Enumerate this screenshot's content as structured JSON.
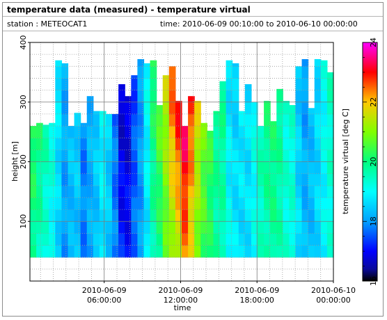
{
  "header": {
    "title": "temperature data (measured) - temperature virtual",
    "station_label": "station : METEOCAT1",
    "time_label": "time: 2010-06-09 00:10:00 to 2010-06-10 00:00:00"
  },
  "chart_data": {
    "type": "heatmap",
    "xlabel": "time",
    "ylabel": "height [m]",
    "colorbar_label": "temperature virtual [deg C]",
    "xlim": [
      "2010-06-09 00:10:00",
      "2010-06-10 00:00:00"
    ],
    "ylim": [
      0,
      400
    ],
    "y_ticks": [
      100,
      200,
      300,
      400
    ],
    "x_ticks": [
      {
        "value": "2010-06-09 06:00:00",
        "line1": "2010-06-09",
        "line2": "06:00:00"
      },
      {
        "value": "2010-06-09 12:00:00",
        "line1": "2010-06-09",
        "line2": "12:00:00"
      },
      {
        "value": "2010-06-09 18:00:00",
        "line1": "2010-06-09",
        "line2": "18:00:00"
      },
      {
        "value": "2010-06-10 00:00:00",
        "line1": "2010-06-10",
        "line2": "00:00:00"
      }
    ],
    "color_range": [
      16,
      24
    ],
    "colorbar_ticks": [
      16,
      18,
      20,
      22,
      24
    ],
    "grid": true,
    "data_bottom_m": 40,
    "hours": [
      0.25,
      0.75,
      1.25,
      1.75,
      2.25,
      2.75,
      3.25,
      3.75,
      4.25,
      4.75,
      5.25,
      5.75,
      6.25,
      6.75,
      7.25,
      7.75,
      8.25,
      8.75,
      9.25,
      9.75,
      10.25,
      10.75,
      11.25,
      11.75,
      12.25,
      12.75,
      13.25,
      13.75,
      14.25,
      14.75,
      15.25,
      15.75,
      16.25,
      16.75,
      17.25,
      17.75,
      18.25,
      18.75,
      19.25,
      19.75,
      20.25,
      20.75,
      21.25,
      21.75,
      22.25,
      22.75,
      23.25,
      23.75
    ],
    "top_height_m": [
      260,
      265,
      262,
      265,
      370,
      365,
      260,
      282,
      265,
      310,
      285,
      285,
      280,
      280,
      330,
      310,
      345,
      372,
      365,
      370,
      295,
      345,
      360,
      302,
      260,
      310,
      302,
      265,
      252,
      285,
      335,
      370,
      365,
      285,
      330,
      300,
      260,
      302,
      268,
      322,
      302,
      295,
      360,
      372,
      290,
      372,
      370,
      350
    ],
    "surface_temp_c": [
      19.8,
      19.5,
      19.2,
      18.9,
      18.5,
      18.0,
      18.2,
      18.3,
      17.8,
      18.1,
      18.3,
      18.7,
      18.4,
      17.8,
      17.2,
      17.1,
      17.7,
      18.0,
      18.7,
      19.6,
      19.9,
      20.6,
      21.0,
      21.4,
      22.3,
      21.6,
      20.9,
      20.4,
      20.1,
      19.7,
      19.6,
      19.1,
      18.8,
      18.6,
      18.7,
      19.0,
      19.4,
      19.6,
      19.8,
      19.6,
      19.3,
      19.3,
      18.7,
      18.3,
      18.3,
      18.6,
      18.9,
      19.2
    ],
    "lapse_c_per_100m": [
      0.25,
      0.25,
      0.2,
      0.2,
      0.1,
      0.05,
      0.1,
      0.1,
      0.0,
      0.05,
      0.1,
      0.1,
      0.05,
      -0.05,
      -0.2,
      -0.15,
      -0.1,
      0.0,
      0.1,
      0.2,
      0.35,
      0.3,
      0.55,
      0.65,
      0.5,
      0.45,
      0.3,
      0.2,
      0.15,
      0.05,
      0.1,
      -0.15,
      -0.1,
      0.1,
      0.0,
      0.05,
      0.1,
      0.15,
      0.1,
      0.1,
      0.0,
      0.0,
      -0.1,
      -0.1,
      0.0,
      0.0,
      0.05,
      0.1
    ]
  }
}
